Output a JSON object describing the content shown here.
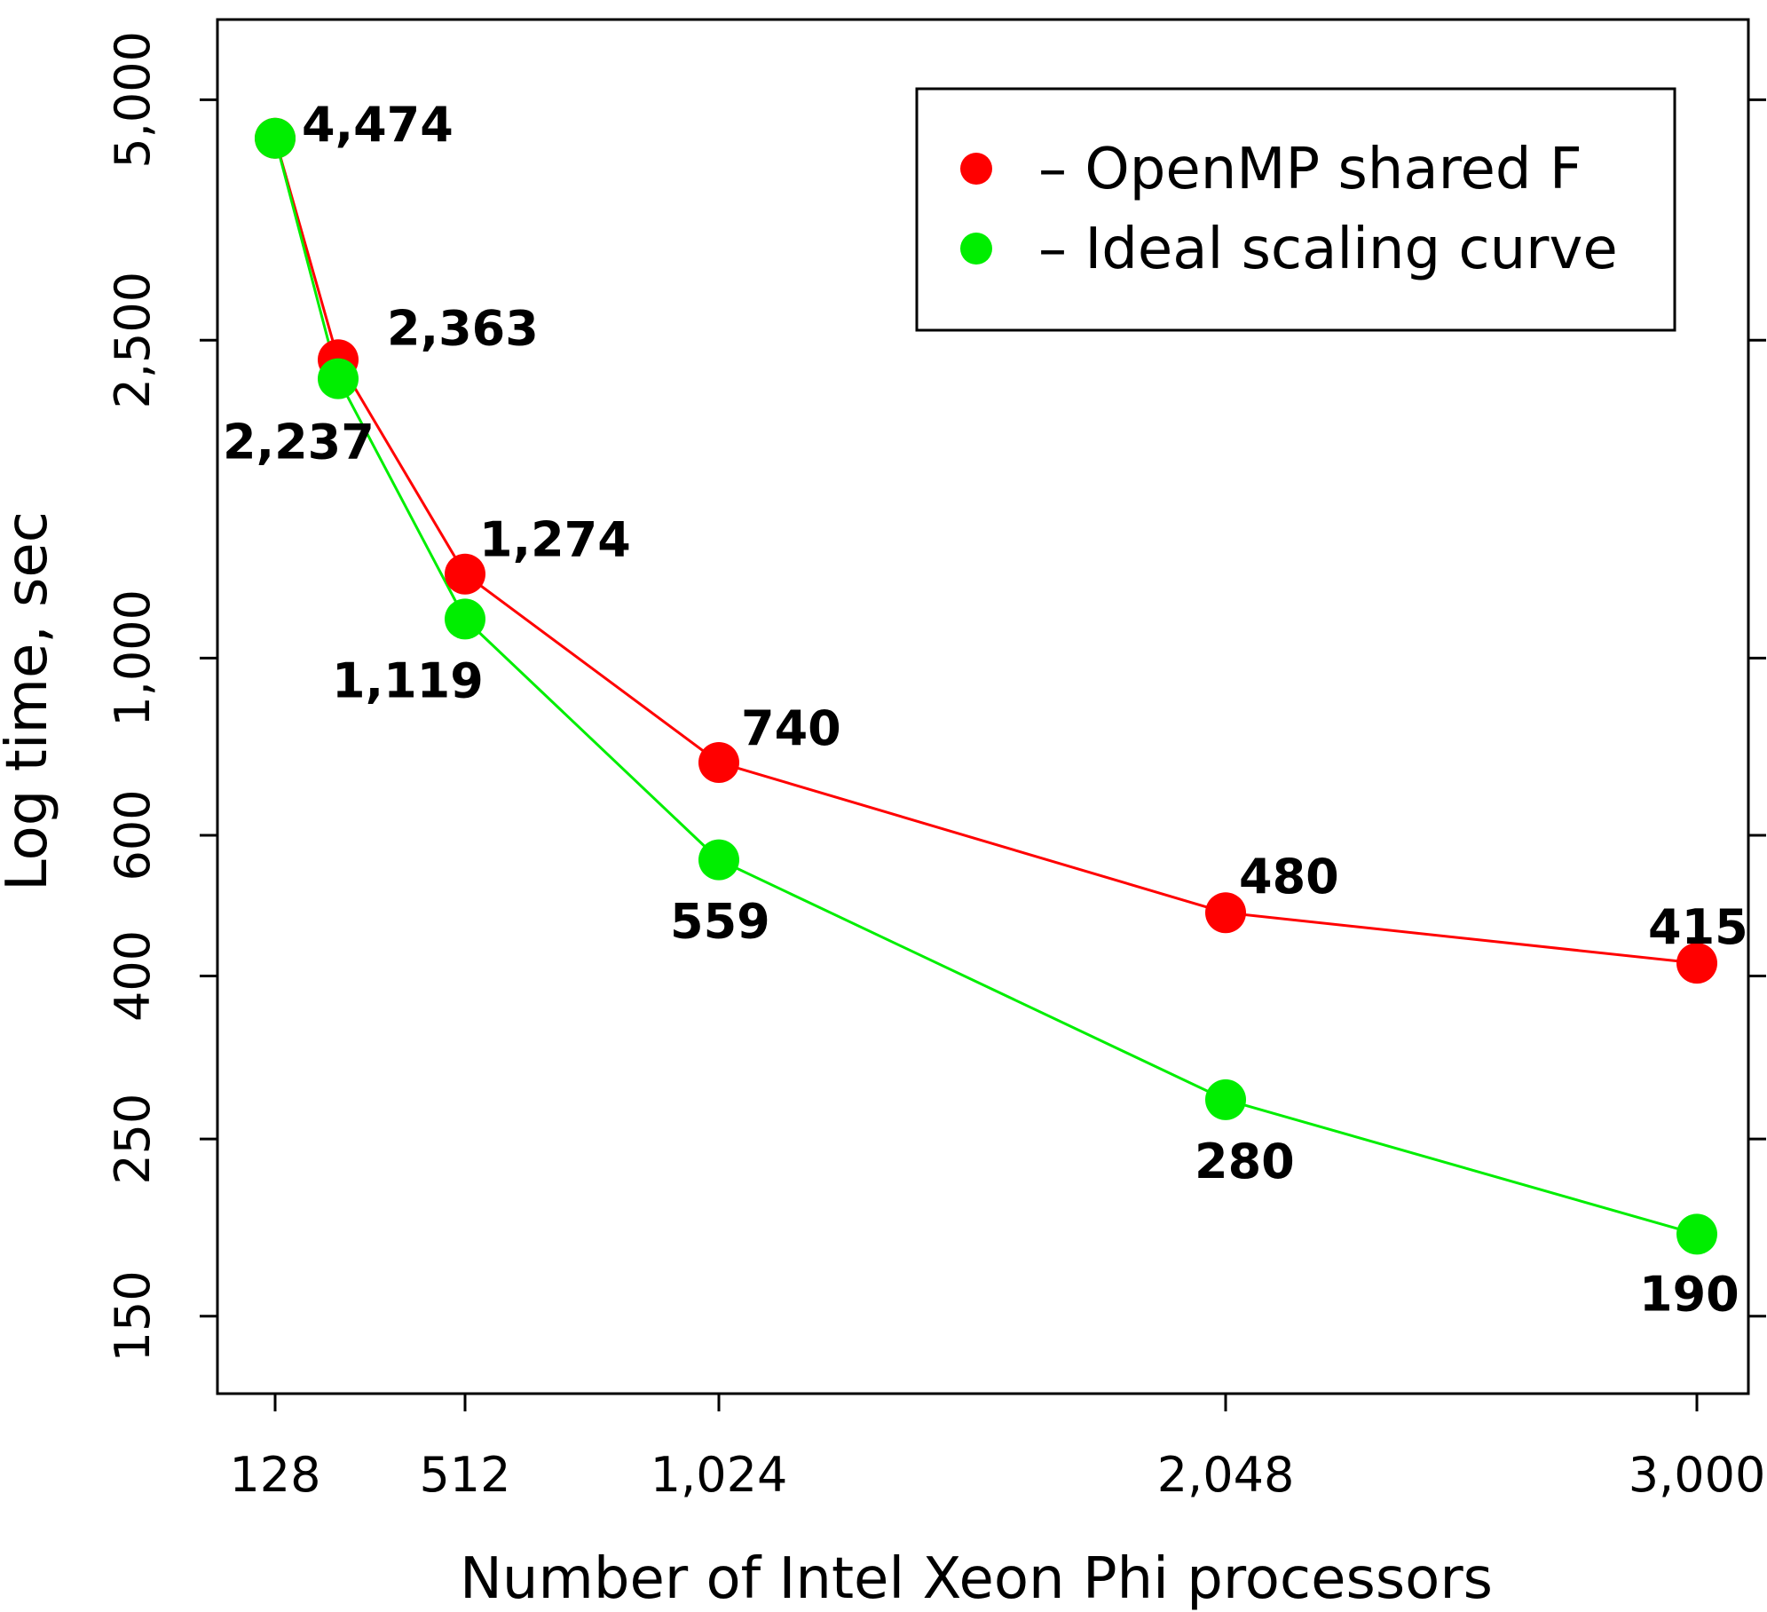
{
  "chart_data": {
    "type": "line",
    "xlabel": "Number of Intel Xeon Phi processors",
    "ylabel": "Log time, sec",
    "y_scale": "log",
    "ylim": [
      120,
      6300
    ],
    "x_tick_labels": [
      "128",
      "512",
      "1,024",
      "2,048",
      "3,000"
    ],
    "y_ticks": [
      {
        "value": 150,
        "label": "150"
      },
      {
        "value": 250,
        "label": "250"
      },
      {
        "value": 400,
        "label": "400"
      },
      {
        "value": 600,
        "label": "600"
      },
      {
        "value": 1000,
        "label": "1,000"
      },
      {
        "value": 2500,
        "label": "2,500"
      },
      {
        "value": 5000,
        "label": "5,000"
      }
    ],
    "legend_position": "top-right",
    "grid": false,
    "series": [
      {
        "name": "OpenMP shared F",
        "legend_label": "– OpenMP shared F",
        "color": "#ff0000",
        "points": [
          {
            "x": 128,
            "y": 4474,
            "label": ""
          },
          {
            "x": 256,
            "y": 2363,
            "label": "2,363"
          },
          {
            "x": 512,
            "y": 1274,
            "label": "1,274"
          },
          {
            "x": 1024,
            "y": 740,
            "label": "740"
          },
          {
            "x": 2048,
            "y": 480,
            "label": "480"
          },
          {
            "x": 3000,
            "y": 415,
            "label": "415"
          }
        ]
      },
      {
        "name": "Ideal scaling curve",
        "legend_label": "– Ideal scaling curve",
        "color": "#00ee00",
        "points": [
          {
            "x": 128,
            "y": 4474,
            "label": "4,474"
          },
          {
            "x": 256,
            "y": 2237,
            "label": "2,237"
          },
          {
            "x": 512,
            "y": 1119,
            "label": "1,119"
          },
          {
            "x": 1024,
            "y": 559,
            "label": "559"
          },
          {
            "x": 2048,
            "y": 280,
            "label": "280"
          },
          {
            "x": 3000,
            "y": 190,
            "label": "190"
          }
        ]
      }
    ]
  }
}
